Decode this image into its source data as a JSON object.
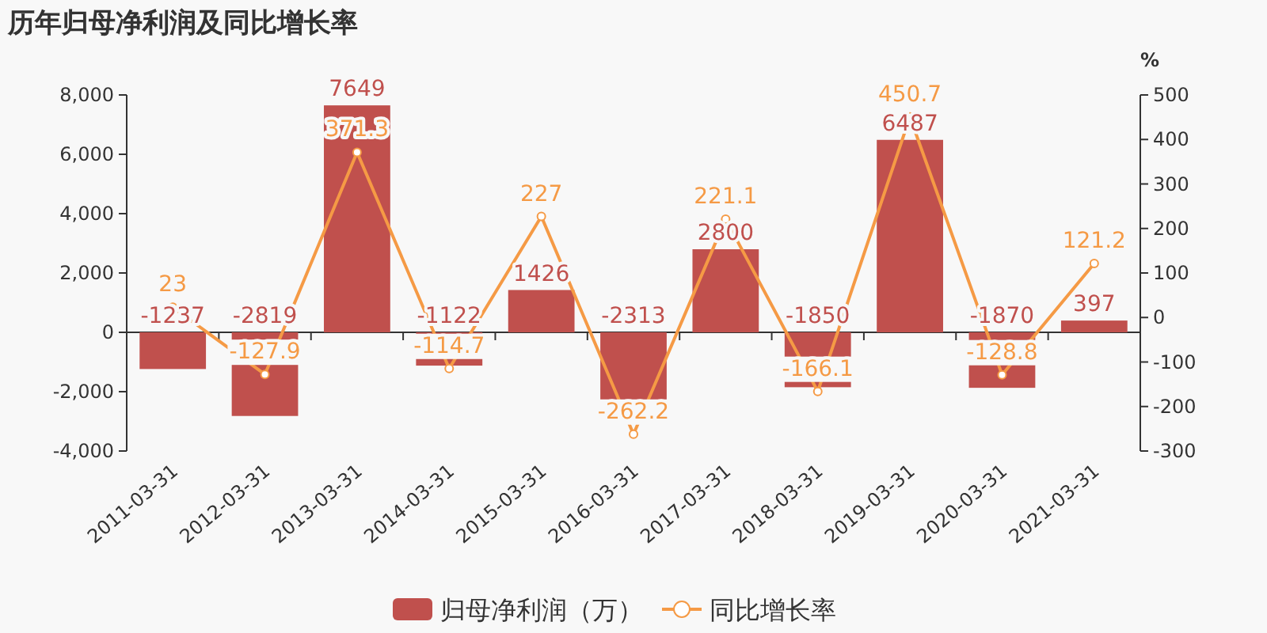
{
  "chart_data": {
    "type": "bar",
    "title": "历年归母净利润及同比增长率",
    "y2label": "%",
    "categories": [
      "2011-03-31",
      "2012-03-31",
      "2013-03-31",
      "2014-03-31",
      "2015-03-31",
      "2016-03-31",
      "2017-03-31",
      "2018-03-31",
      "2019-03-31",
      "2020-03-31",
      "2021-03-31"
    ],
    "series": [
      {
        "name": "归母净利润（万）",
        "color": "#c0504d",
        "values": [
          -1237,
          -2819,
          7649,
          -1122,
          1426,
          -2313,
          2800,
          -1850,
          6487,
          -1870,
          397
        ]
      },
      {
        "name": "同比增长率",
        "type": "line",
        "axis": "y2",
        "marker": "circle",
        "color": "#f59a45",
        "values": [
          23,
          -127.9,
          371.3,
          -114.7,
          227,
          -262.2,
          221.1,
          -166.1,
          450.7,
          -128.8,
          121.2
        ]
      }
    ],
    "ylim": [
      -4000,
      8000
    ],
    "yticks": [
      {
        "value": -4000,
        "label": "-4,000"
      },
      {
        "value": -2000,
        "label": "-2,000"
      },
      0,
      {
        "value": 2000,
        "label": "2,000"
      },
      {
        "value": 4000,
        "label": "4,000"
      },
      {
        "value": 6000,
        "label": "6,000"
      },
      {
        "value": 8000,
        "label": "8,000"
      }
    ],
    "y2lim": [
      -300,
      500
    ],
    "y2ticks": [
      -300,
      -200,
      -100,
      0,
      100,
      200,
      300,
      400,
      500
    ],
    "data_labels": true,
    "legend": "bottom"
  }
}
